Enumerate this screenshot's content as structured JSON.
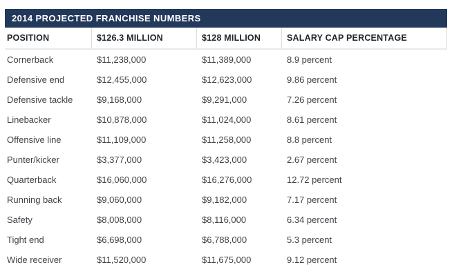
{
  "table": {
    "title": "2014 PROJECTED FRANCHISE NUMBERS",
    "columns": [
      "POSITION",
      "$126.3 MILLION",
      "$128 MILLION",
      "SALARY CAP PERCENTAGE"
    ],
    "rows": [
      {
        "position": "Cornerback",
        "cap_126_3": "$11,238,000",
        "cap_128": "$11,389,000",
        "salary_cap_pct": "8.9 percent"
      },
      {
        "position": "Defensive end",
        "cap_126_3": "$12,455,000",
        "cap_128": "$12,623,000",
        "salary_cap_pct": "9.86 percent"
      },
      {
        "position": "Defensive tackle",
        "cap_126_3": "$9,168,000",
        "cap_128": "$9,291,000",
        "salary_cap_pct": "7.26 percent"
      },
      {
        "position": "Linebacker",
        "cap_126_3": "$10,878,000",
        "cap_128": "$11,024,000",
        "salary_cap_pct": "8.61 percent"
      },
      {
        "position": "Offensive line",
        "cap_126_3": "$11,109,000",
        "cap_128": "$11,258,000",
        "salary_cap_pct": "8.8 percent"
      },
      {
        "position": "Punter/kicker",
        "cap_126_3": "$3,377,000",
        "cap_128": "$3,423,000",
        "salary_cap_pct": "2.67 percent"
      },
      {
        "position": "Quarterback",
        "cap_126_3": "$16,060,000",
        "cap_128": "$16,276,000",
        "salary_cap_pct": "12.72 percent"
      },
      {
        "position": "Running back",
        "cap_126_3": "$9,060,000",
        "cap_128": "$9,182,000",
        "salary_cap_pct": "7.17 percent"
      },
      {
        "position": "Safety",
        "cap_126_3": "$8,008,000",
        "cap_128": "$8,116,000",
        "salary_cap_pct": "6.34 percent"
      },
      {
        "position": "Tight end",
        "cap_126_3": "$6,698,000",
        "cap_128": "$6,788,000",
        "salary_cap_pct": "5.3 percent"
      },
      {
        "position": "Wide receiver",
        "cap_126_3": "$11,520,000",
        "cap_128": "$11,675,000",
        "salary_cap_pct": "9.12 percent"
      }
    ]
  },
  "colors": {
    "title_bar": "#22395B",
    "title_text": "#FFFFFF",
    "header_text": "#1F242B",
    "body_text": "#3E4348",
    "separator": "#DDDDDD",
    "header_border": "#E9E9E9",
    "page_bg": "#FFFFFF"
  },
  "chart_data": {
    "type": "table",
    "title": "2014 PROJECTED FRANCHISE NUMBERS",
    "columns": [
      "POSITION",
      "$126.3 MILLION",
      "$128 MILLION",
      "SALARY CAP PERCENTAGE"
    ],
    "rows": [
      [
        "Cornerback",
        "$11,238,000",
        "$11,389,000",
        "8.9 percent"
      ],
      [
        "Defensive end",
        "$12,455,000",
        "$12,623,000",
        "9.86 percent"
      ],
      [
        "Defensive tackle",
        "$9,168,000",
        "$9,291,000",
        "7.26 percent"
      ],
      [
        "Linebacker",
        "$10,878,000",
        "$11,024,000",
        "8.61 percent"
      ],
      [
        "Offensive line",
        "$11,109,000",
        "$11,258,000",
        "8.8 percent"
      ],
      [
        "Punter/kicker",
        "$3,377,000",
        "$3,423,000",
        "2.67 percent"
      ],
      [
        "Quarterback",
        "$16,060,000",
        "$16,276,000",
        "12.72 percent"
      ],
      [
        "Running back",
        "$9,060,000",
        "$9,182,000",
        "7.17 percent"
      ],
      [
        "Safety",
        "$8,008,000",
        "$8,116,000",
        "6.34 percent"
      ],
      [
        "Tight end",
        "$6,698,000",
        "$6,788,000",
        "5.3 percent"
      ],
      [
        "Wide receiver",
        "$11,520,000",
        "$11,675,000",
        "9.12 percent"
      ]
    ],
    "salary_cap_percentage_values": [
      8.9,
      9.86,
      7.26,
      8.61,
      8.8,
      2.67,
      12.72,
      7.17,
      6.34,
      5.3,
      9.12
    ]
  }
}
